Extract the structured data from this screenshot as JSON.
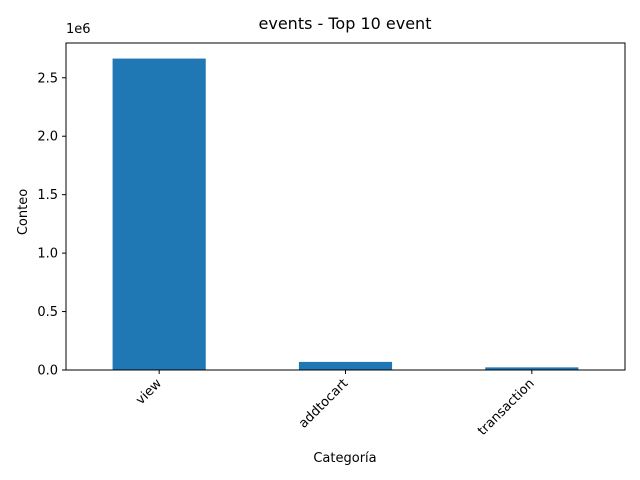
{
  "chart_data": {
    "type": "bar",
    "title": "events - Top 10 event",
    "xlabel": "Categoría",
    "ylabel": "Conteo",
    "categories": [
      "view",
      "addtocart",
      "transaction"
    ],
    "values": [
      2664312,
      69332,
      22457
    ],
    "ylim": [
      0,
      2797528
    ],
    "yticks": [
      0,
      500000,
      1000000,
      1500000,
      2000000,
      2500000
    ],
    "ytick_labels": [
      "0.0",
      "0.5",
      "1.0",
      "1.5",
      "2.0",
      "2.5"
    ],
    "y_offset_label": "1e6",
    "bar_color": "#1f77b4",
    "xtick_rotation": 45,
    "grid": false,
    "legend": false
  }
}
